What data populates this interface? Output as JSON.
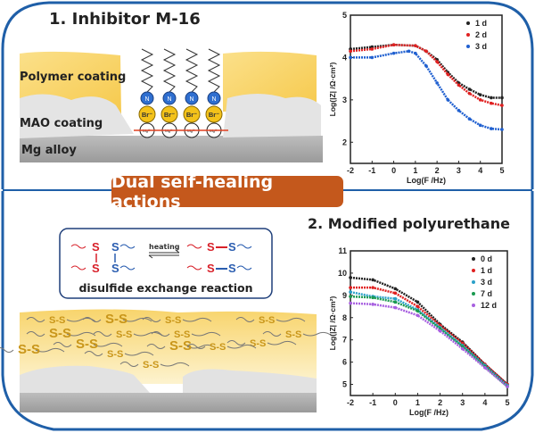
{
  "panel1": {
    "title": "1. Inhibitor M-16",
    "labels": {
      "polymer": "Polymer coating",
      "mao": "MAO coating",
      "alloy": "Mg alloy"
    },
    "ions": {
      "n": "N",
      "br": "Br⁻",
      "mg": "Mg²⁺"
    }
  },
  "banner": {
    "label": "Dual self-healing actions"
  },
  "panel2": {
    "title": "2. Modified polyurethane",
    "reaction": {
      "label": "disulfide exchange reaction",
      "arrow_label": "heating",
      "s": "S",
      "ss": "S-S"
    }
  },
  "colors": {
    "frame": "#1f5fa8",
    "banner": "#c4581c",
    "coating": "#f7d36a",
    "sulfur_red": "#d8212a",
    "sulfur_blue": "#2a5db0",
    "ss_gold": "#c9961a"
  },
  "chart_data": [
    {
      "type": "scatter",
      "xlabel": "Log(F /Hz)",
      "ylabel": "Log(|Z| /Ω·cm²)",
      "xlim": [
        -2,
        5
      ],
      "ylim": [
        1.5,
        5
      ],
      "xticks": [
        "-2",
        "-1",
        "0",
        "1",
        "2",
        "3",
        "4",
        "5"
      ],
      "yticks": [
        "2",
        "3",
        "4",
        "5"
      ],
      "legend": "top-right",
      "series": [
        {
          "name": "1 d",
          "color": "#222222",
          "marker": "square",
          "x": [
            -2,
            -1,
            0,
            1,
            1.5,
            2,
            2.5,
            3,
            3.5,
            4,
            4.5,
            5
          ],
          "y": [
            4.2,
            4.25,
            4.3,
            4.28,
            4.15,
            3.95,
            3.65,
            3.4,
            3.25,
            3.12,
            3.05,
            3.05
          ]
        },
        {
          "name": "2 d",
          "color": "#e02020",
          "marker": "circle",
          "x": [
            -2,
            -1,
            0,
            1,
            1.5,
            2,
            2.5,
            3,
            3.5,
            4,
            4.5,
            5
          ],
          "y": [
            4.15,
            4.2,
            4.3,
            4.28,
            4.15,
            3.9,
            3.6,
            3.35,
            3.15,
            3.0,
            2.92,
            2.87
          ]
        },
        {
          "name": "3 d",
          "color": "#2060d0",
          "marker": "triangle",
          "x": [
            -2,
            -1,
            0,
            0.7,
            1,
            1.5,
            2,
            2.5,
            3,
            3.5,
            4,
            4.5,
            5
          ],
          "y": [
            4.0,
            4.0,
            4.1,
            4.15,
            4.1,
            3.8,
            3.4,
            3.0,
            2.75,
            2.55,
            2.4,
            2.32,
            2.3
          ]
        }
      ]
    },
    {
      "type": "scatter",
      "xlabel": "Log(F /Hz)",
      "ylabel": "Log(|Z| /Ω·cm²)",
      "xlim": [
        -2,
        5
      ],
      "ylim": [
        4.5,
        11
      ],
      "xticks": [
        "-2",
        "-1",
        "0",
        "1",
        "2",
        "3",
        "4",
        "5"
      ],
      "yticks": [
        "5",
        "6",
        "7",
        "8",
        "9",
        "10",
        "11"
      ],
      "legend": "top-right",
      "series": [
        {
          "name": "0 d",
          "color": "#222222",
          "marker": "square",
          "x": [
            -2,
            -1,
            0,
            1,
            2,
            3,
            4,
            5
          ],
          "y": [
            9.8,
            9.7,
            9.3,
            8.7,
            7.7,
            6.9,
            5.9,
            5.0
          ]
        },
        {
          "name": "1 d",
          "color": "#e02020",
          "marker": "circle",
          "x": [
            -2,
            -1,
            0,
            1,
            2,
            3,
            4,
            5
          ],
          "y": [
            9.35,
            9.35,
            9.1,
            8.5,
            7.65,
            6.85,
            5.9,
            5.0
          ]
        },
        {
          "name": "3 d",
          "color": "#2aa0c8",
          "marker": "triangle",
          "x": [
            -2,
            -1,
            0,
            1,
            2,
            3,
            4,
            5
          ],
          "y": [
            9.15,
            8.95,
            8.85,
            8.35,
            7.55,
            6.75,
            5.85,
            4.95
          ]
        },
        {
          "name": "7 d",
          "color": "#1a9a50",
          "marker": "triangle-down",
          "x": [
            -2,
            -1,
            0,
            1,
            2,
            3,
            4,
            5
          ],
          "y": [
            8.95,
            8.9,
            8.7,
            8.3,
            7.5,
            6.7,
            5.8,
            4.9
          ]
        },
        {
          "name": "12 d",
          "color": "#a860e0",
          "marker": "diamond",
          "x": [
            -2,
            -1,
            0,
            1,
            2,
            3,
            4,
            5
          ],
          "y": [
            8.65,
            8.6,
            8.45,
            8.1,
            7.4,
            6.6,
            5.75,
            4.9
          ]
        }
      ]
    }
  ]
}
